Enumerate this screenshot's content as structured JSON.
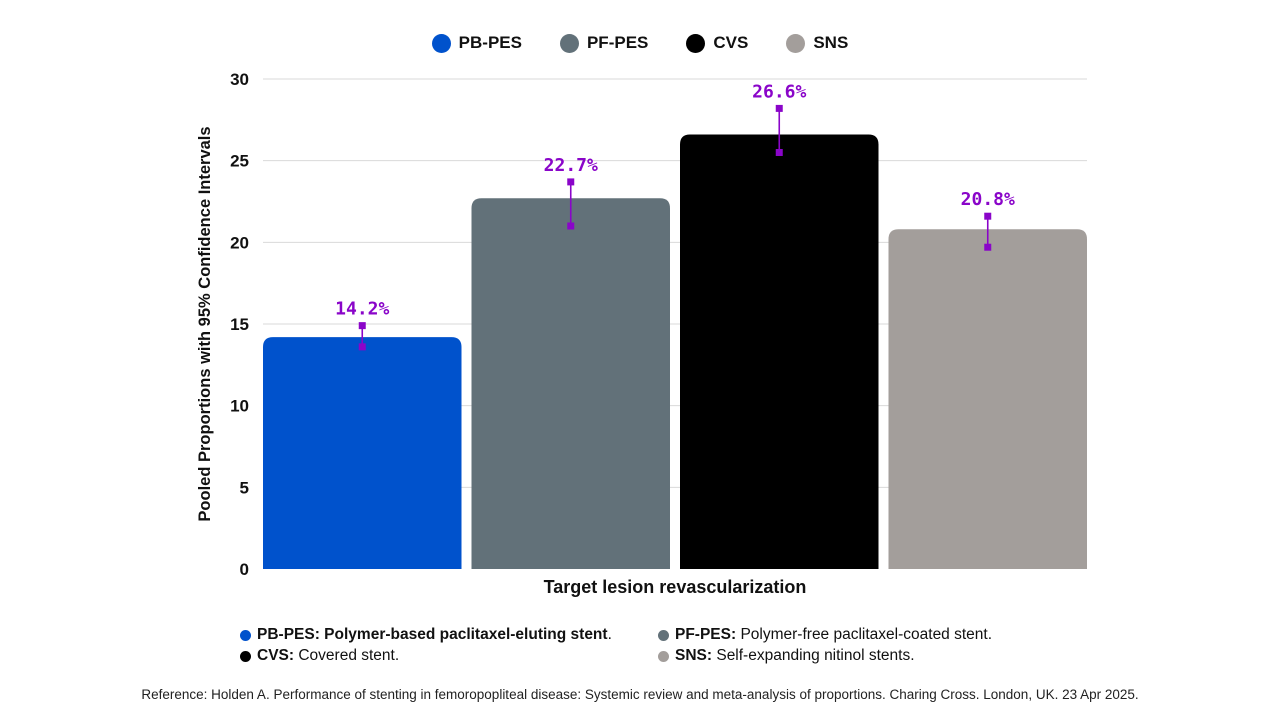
{
  "chart_data": {
    "type": "bar",
    "title": "",
    "categories": [
      "PB-PES",
      "PF-PES",
      "CVS",
      "SNS"
    ],
    "values": [
      14.2,
      22.7,
      26.6,
      20.8
    ],
    "value_labels": [
      "14.2%",
      "22.7%",
      "26.6%",
      "20.8%"
    ],
    "ci_lower": [
      13.6,
      21.0,
      25.5,
      19.7
    ],
    "ci_upper": [
      14.9,
      23.7,
      28.2,
      21.6
    ],
    "colors": [
      "#0052CC",
      "#627179",
      "#000000",
      "#A39E9B"
    ],
    "errorbar_color": "#8A05C9",
    "xlabel": "Target lesion revascularization",
    "ylabel": "Pooled Proportions with 95% Confidence Intervals",
    "ylim": [
      0,
      30
    ],
    "yticks": [
      0,
      5,
      10,
      15,
      20,
      25,
      30
    ],
    "grid": true,
    "legend_position": "top-center"
  },
  "legend": [
    {
      "label": "PB-PES",
      "color": "#0052CC",
      "icon": "circle-icon"
    },
    {
      "label": "PF-PES",
      "color": "#627179",
      "icon": "circle-icon"
    },
    {
      "label": "CVS",
      "color": "#000000",
      "icon": "circle-icon"
    },
    {
      "label": "SNS",
      "color": "#A39E9B",
      "icon": "circle-icon"
    }
  ],
  "abbreviations": [
    {
      "abbr": "PB-PES:",
      "text": " Polymer-based paclitaxel-eluting stent",
      "suffix": ".",
      "bold_text": true,
      "color": "#0052CC"
    },
    {
      "abbr": "PF-PES:",
      "text": " Polymer-free paclitaxel-coated stent.",
      "suffix": "",
      "bold_text": false,
      "color": "#627179"
    },
    {
      "abbr": "CVS:",
      "text": " Covered stent.",
      "suffix": "",
      "bold_text": false,
      "color": "#000000"
    },
    {
      "abbr": "SNS:",
      "text": " Self-expanding nitinol stents.",
      "suffix": "",
      "bold_text": false,
      "color": "#A39E9B"
    }
  ],
  "reference": "Reference: Holden A. Performance of stenting in femoropopliteal disease: Systemic review and meta-analysis of proportions. Charing Cross. London, UK. 23 Apr 2025."
}
